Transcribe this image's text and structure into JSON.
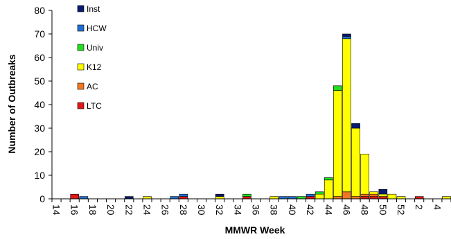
{
  "chart_data": {
    "type": "bar",
    "stacked": true,
    "xlabel": "MMWR Week",
    "ylabel": "Number of Outbreaks",
    "ylim": [
      0,
      80
    ],
    "yticks": [
      0,
      10,
      20,
      30,
      40,
      50,
      60,
      70,
      80
    ],
    "grid": false,
    "legend_position": "top-left",
    "categories": [
      "14",
      "15",
      "16",
      "17",
      "18",
      "19",
      "20",
      "21",
      "22",
      "23",
      "24",
      "25",
      "26",
      "27",
      "28",
      "29",
      "30",
      "31",
      "32",
      "33",
      "34",
      "35",
      "36",
      "37",
      "38",
      "39",
      "40",
      "41",
      "42",
      "43",
      "44",
      "45",
      "46",
      "47",
      "48",
      "49",
      "50",
      "51",
      "52",
      "1",
      "2",
      "3",
      "4",
      "5"
    ],
    "tick_labels": [
      "14",
      "16",
      "18",
      "20",
      "22",
      "24",
      "26",
      "28",
      "30",
      "32",
      "34",
      "36",
      "38",
      "40",
      "42",
      "44",
      "46",
      "48",
      "50",
      "52",
      "2",
      "4"
    ],
    "series": [
      {
        "name": "LTC",
        "color": "#e01818",
        "values": [
          0,
          0,
          2,
          0,
          0,
          0,
          0,
          0,
          0,
          0,
          0,
          0,
          0,
          0,
          1,
          0,
          0,
          0,
          0,
          0,
          0,
          1,
          0,
          0,
          0,
          0,
          0,
          0,
          1,
          0,
          0,
          0,
          0,
          0,
          1,
          1,
          1,
          0,
          0,
          0,
          1,
          0,
          0,
          0
        ]
      },
      {
        "name": "AC",
        "color": "#f07820",
        "values": [
          0,
          0,
          0,
          0,
          0,
          0,
          0,
          0,
          0,
          0,
          0,
          0,
          0,
          0,
          0,
          0,
          0,
          0,
          0,
          0,
          0,
          0,
          0,
          0,
          0,
          0,
          0,
          0,
          0,
          0,
          0,
          1,
          3,
          1,
          1,
          1,
          0,
          0,
          0,
          0,
          0,
          0,
          0,
          0
        ]
      },
      {
        "name": "K12",
        "color": "#ffff00",
        "values": [
          0,
          0,
          0,
          0,
          0,
          0,
          0,
          0,
          0,
          0,
          1,
          0,
          0,
          0,
          0,
          0,
          0,
          0,
          1,
          0,
          0,
          0,
          0,
          0,
          1,
          0,
          0,
          0,
          0,
          2,
          8,
          45,
          65,
          29,
          17,
          1,
          1,
          2,
          1,
          0,
          0,
          0,
          0,
          1
        ]
      },
      {
        "name": "Univ",
        "color": "#22dd22",
        "values": [
          0,
          0,
          0,
          0,
          0,
          0,
          0,
          0,
          0,
          0,
          0,
          0,
          0,
          0,
          0,
          0,
          0,
          0,
          0,
          0,
          0,
          1,
          0,
          0,
          0,
          0,
          0,
          1,
          0,
          1,
          1,
          2,
          0,
          0,
          0,
          0,
          0,
          0,
          0,
          0,
          0,
          0,
          0,
          0
        ]
      },
      {
        "name": "HCW",
        "color": "#1f6fd1",
        "values": [
          0,
          0,
          0,
          1,
          0,
          0,
          0,
          0,
          0,
          0,
          0,
          0,
          0,
          1,
          1,
          0,
          0,
          0,
          0,
          0,
          0,
          0,
          0,
          0,
          0,
          1,
          1,
          0,
          1,
          0,
          0,
          0,
          1,
          0,
          0,
          0,
          0,
          0,
          0,
          0,
          0,
          0,
          0,
          0
        ]
      },
      {
        "name": "Inst",
        "color": "#0a1a6e",
        "values": [
          0,
          0,
          0,
          0,
          0,
          0,
          0,
          0,
          1,
          0,
          0,
          0,
          0,
          0,
          0,
          0,
          0,
          0,
          1,
          0,
          0,
          0,
          0,
          0,
          0,
          0,
          0,
          0,
          0,
          0,
          0,
          0,
          1,
          2,
          0,
          0,
          2,
          0,
          0,
          0,
          0,
          0,
          0,
          0
        ]
      }
    ],
    "legend_order": [
      "Inst",
      "HCW",
      "Univ",
      "K12",
      "AC",
      "LTC"
    ]
  }
}
